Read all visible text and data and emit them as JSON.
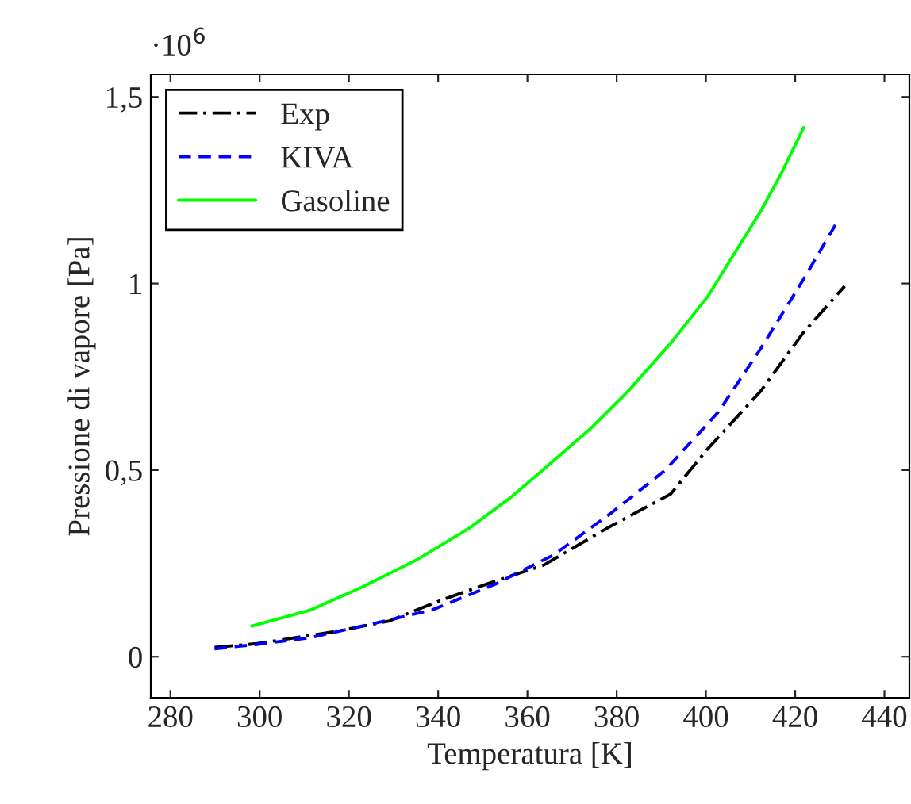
{
  "chart_data": {
    "type": "line",
    "xlabel": "Temperatura [K]",
    "ylabel": "Pressione di vapore [Pa]",
    "annotations": [
      "·10$^{6}$"
    ],
    "xlim": [
      275.6,
      445.6
    ],
    "ylim": [
      -0.11,
      1.56
    ],
    "xticks": [
      280,
      300,
      320,
      340,
      360,
      380,
      400,
      420,
      440
    ],
    "yticks": [
      {
        "value": 0,
        "label": "0"
      },
      {
        "value": 0.5,
        "label": "0,5"
      },
      {
        "value": 1,
        "label": "1"
      },
      {
        "value": 1.5,
        "label": "1,5"
      }
    ],
    "grid": false,
    "legend": "top left",
    "series": [
      {
        "name": "Exp",
        "color": "#000000",
        "line_style": "dashdot",
        "x": [
          289.9,
          299.4,
          317.2,
          329.1,
          341.0,
          352.9,
          363.6,
          377.8,
          392.1,
          400.4,
          412.3,
          421.8,
          431.1
        ],
        "values": [
          0.025,
          0.035,
          0.068,
          0.096,
          0.153,
          0.203,
          0.245,
          0.344,
          0.436,
          0.557,
          0.712,
          0.868,
          0.993
        ]
      },
      {
        "name": "KIVA",
        "color": "#0000ff",
        "line_style": "dashed",
        "x": [
          289.9,
          299.4,
          311.3,
          325.5,
          338.6,
          352.9,
          365.9,
          379.0,
          390.9,
          402.8,
          412.3,
          421.8,
          429.8
        ],
        "values": [
          0.021,
          0.033,
          0.051,
          0.089,
          0.125,
          0.195,
          0.273,
          0.387,
          0.5,
          0.656,
          0.826,
          1.01,
          1.173
        ]
      },
      {
        "name": "Gasoline",
        "color": "#00ff00",
        "line_style": "solid",
        "x": [
          298.2,
          311.4,
          323.2,
          335.1,
          346.9,
          356.5,
          364.8,
          374.3,
          382.6,
          392.1,
          400.5,
          406.4,
          412.3,
          417.1,
          421.9
        ],
        "values": [
          0.082,
          0.125,
          0.188,
          0.259,
          0.344,
          0.429,
          0.514,
          0.613,
          0.712,
          0.84,
          0.967,
          1.081,
          1.194,
          1.3,
          1.418
        ]
      }
    ]
  }
}
